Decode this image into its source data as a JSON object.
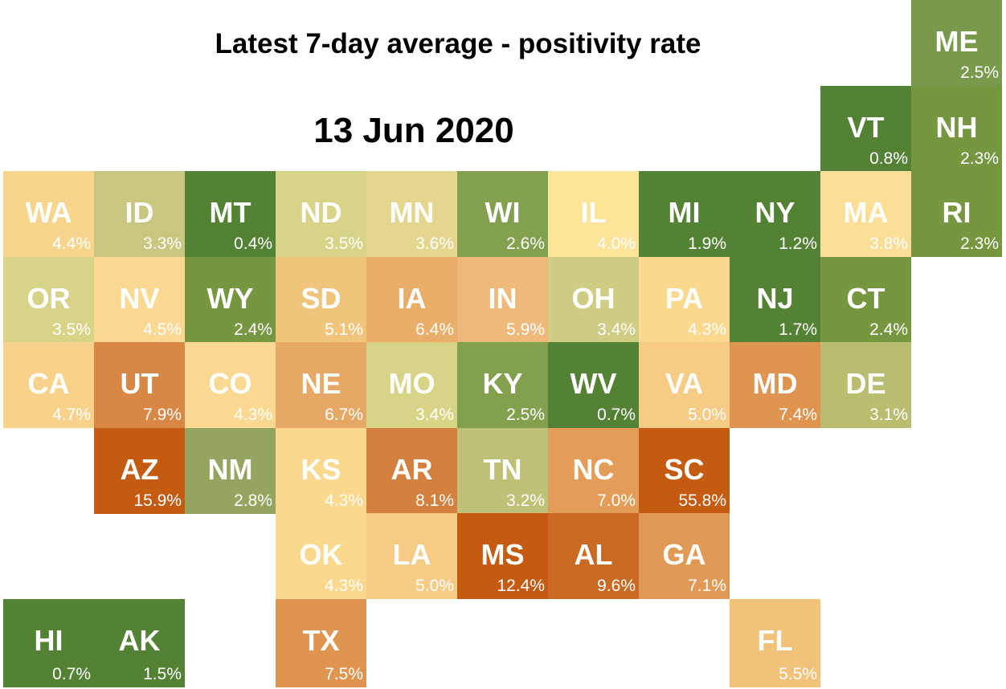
{
  "title": "Latest 7-day average - positivity rate",
  "date": "13 Jun 2020",
  "tiles": [
    {
      "abbr": "ME",
      "rate": "2.5%",
      "color": "#7a9a4b",
      "col": 10,
      "row": 0
    },
    {
      "abbr": "VT",
      "rate": "0.8%",
      "color": "#548235",
      "col": 9,
      "row": 1
    },
    {
      "abbr": "NH",
      "rate": "2.3%",
      "color": "#76973f",
      "col": 10,
      "row": 1
    },
    {
      "abbr": "WA",
      "rate": "4.4%",
      "color": "#f8d58c",
      "col": 0,
      "row": 2
    },
    {
      "abbr": "ID",
      "rate": "3.3%",
      "color": "#c9c680",
      "col": 1,
      "row": 2
    },
    {
      "abbr": "MT",
      "rate": "0.4%",
      "color": "#548235",
      "col": 2,
      "row": 2
    },
    {
      "abbr": "ND",
      "rate": "3.5%",
      "color": "#d7d488",
      "col": 3,
      "row": 2
    },
    {
      "abbr": "MN",
      "rate": "3.6%",
      "color": "#e4d68e",
      "col": 4,
      "row": 2
    },
    {
      "abbr": "WI",
      "rate": "2.6%",
      "color": "#83a04f",
      "col": 5,
      "row": 2
    },
    {
      "abbr": "IL",
      "rate": "4.0%",
      "color": "#fde498",
      "col": 6,
      "row": 2
    },
    {
      "abbr": "MI",
      "rate": "1.9%",
      "color": "#548235",
      "col": 7,
      "row": 2
    },
    {
      "abbr": "NY",
      "rate": "1.2%",
      "color": "#548235",
      "col": 8,
      "row": 2
    },
    {
      "abbr": "MA",
      "rate": "3.8%",
      "color": "#fbdf96",
      "col": 9,
      "row": 2
    },
    {
      "abbr": "RI",
      "rate": "2.3%",
      "color": "#76973f",
      "col": 10,
      "row": 2
    },
    {
      "abbr": "OR",
      "rate": "3.5%",
      "color": "#d7d488",
      "col": 0,
      "row": 3
    },
    {
      "abbr": "NV",
      "rate": "4.5%",
      "color": "#fbd993",
      "col": 1,
      "row": 3
    },
    {
      "abbr": "WY",
      "rate": "2.4%",
      "color": "#76973f",
      "col": 2,
      "row": 3
    },
    {
      "abbr": "SD",
      "rate": "5.1%",
      "color": "#f1c47c",
      "col": 3,
      "row": 3
    },
    {
      "abbr": "IA",
      "rate": "6.4%",
      "color": "#e9ae6a",
      "col": 4,
      "row": 3
    },
    {
      "abbr": "IN",
      "rate": "5.9%",
      "color": "#efb97a",
      "col": 5,
      "row": 3
    },
    {
      "abbr": "OH",
      "rate": "3.4%",
      "color": "#cfcd83",
      "col": 6,
      "row": 3
    },
    {
      "abbr": "PA",
      "rate": "4.3%",
      "color": "#fad98f",
      "col": 7,
      "row": 3
    },
    {
      "abbr": "NJ",
      "rate": "1.7%",
      "color": "#548235",
      "col": 8,
      "row": 3
    },
    {
      "abbr": "CT",
      "rate": "2.4%",
      "color": "#76973f",
      "col": 9,
      "row": 3
    },
    {
      "abbr": "CA",
      "rate": "4.7%",
      "color": "#f8d18a",
      "col": 0,
      "row": 4
    },
    {
      "abbr": "UT",
      "rate": "7.9%",
      "color": "#d98745",
      "col": 1,
      "row": 4
    },
    {
      "abbr": "CO",
      "rate": "4.3%",
      "color": "#fbd993",
      "col": 2,
      "row": 4
    },
    {
      "abbr": "NE",
      "rate": "6.7%",
      "color": "#e6a864",
      "col": 3,
      "row": 4
    },
    {
      "abbr": "MO",
      "rate": "3.4%",
      "color": "#d7d488",
      "col": 4,
      "row": 4
    },
    {
      "abbr": "KY",
      "rate": "2.5%",
      "color": "#83a04f",
      "col": 5,
      "row": 4
    },
    {
      "abbr": "WV",
      "rate": "0.7%",
      "color": "#548235",
      "col": 6,
      "row": 4
    },
    {
      "abbr": "VA",
      "rate": "5.0%",
      "color": "#f5cb85",
      "col": 7,
      "row": 4
    },
    {
      "abbr": "MD",
      "rate": "7.4%",
      "color": "#df9550",
      "col": 8,
      "row": 4
    },
    {
      "abbr": "DE",
      "rate": "3.1%",
      "color": "#b9bd70",
      "col": 9,
      "row": 4
    },
    {
      "abbr": "AZ",
      "rate": "15.9%",
      "color": "#c55a11",
      "col": 1,
      "row": 5
    },
    {
      "abbr": "NM",
      "rate": "2.8%",
      "color": "#93a55e",
      "col": 2,
      "row": 5
    },
    {
      "abbr": "KS",
      "rate": "4.3%",
      "color": "#fad98f",
      "col": 3,
      "row": 5
    },
    {
      "abbr": "AR",
      "rate": "8.1%",
      "color": "#d4813f",
      "col": 4,
      "row": 5
    },
    {
      "abbr": "TN",
      "rate": "3.2%",
      "color": "#bfc176",
      "col": 5,
      "row": 5
    },
    {
      "abbr": "NC",
      "rate": "7.0%",
      "color": "#e39d58",
      "col": 6,
      "row": 5
    },
    {
      "abbr": "SC",
      "rate": "55.8%",
      "color": "#c55a11",
      "col": 7,
      "row": 5
    },
    {
      "abbr": "OK",
      "rate": "4.3%",
      "color": "#fad98f",
      "col": 3,
      "row": 6
    },
    {
      "abbr": "LA",
      "rate": "5.0%",
      "color": "#f5cb85",
      "col": 4,
      "row": 6
    },
    {
      "abbr": "MS",
      "rate": "12.4%",
      "color": "#c55a11",
      "col": 5,
      "row": 6
    },
    {
      "abbr": "AL",
      "rate": "9.6%",
      "color": "#ca6a22",
      "col": 6,
      "row": 6
    },
    {
      "abbr": "GA",
      "rate": "7.1%",
      "color": "#e19a55",
      "col": 7,
      "row": 6
    },
    {
      "abbr": "HI",
      "rate": "0.7%",
      "color": "#548235",
      "col": 0,
      "row": 7
    },
    {
      "abbr": "AK",
      "rate": "1.5%",
      "color": "#548235",
      "col": 1,
      "row": 7
    },
    {
      "abbr": "TX",
      "rate": "7.5%",
      "color": "#df9550",
      "col": 3,
      "row": 7
    },
    {
      "abbr": "FL",
      "rate": "5.5%",
      "color": "#f2c27a",
      "col": 8,
      "row": 7
    }
  ]
}
